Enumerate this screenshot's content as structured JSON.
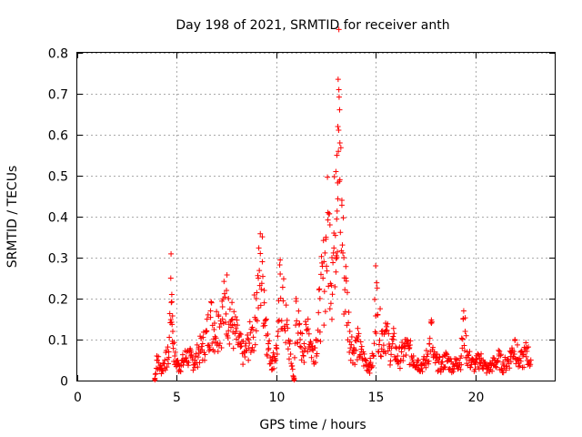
{
  "chart_data": {
    "type": "scatter",
    "title": "Day 198 of 2021, SRMTID for receiver anth",
    "xlabel": "GPS time / hours",
    "ylabel": "SRMTID / TECUs",
    "xlim": [
      0,
      24
    ],
    "ylim": [
      0,
      0.8
    ],
    "xticks": [
      0,
      5,
      10,
      15,
      20
    ],
    "yticks": [
      0,
      0.1,
      0.2,
      0.3,
      0.4,
      0.5,
      0.6,
      0.7,
      0.8
    ],
    "grid": true,
    "marker": "plus",
    "color": "#ff0000",
    "series": [
      {
        "name": "SRMTID",
        "x": [
          3.9,
          4.0,
          4.2,
          4.4,
          4.6,
          4.7,
          4.75,
          4.8,
          4.9,
          5.1,
          5.3,
          5.5,
          5.7,
          5.9,
          6.1,
          6.3,
          6.5,
          6.7,
          6.9,
          7.1,
          7.3,
          7.5,
          7.6,
          7.8,
          8.0,
          8.2,
          8.4,
          8.6,
          8.8,
          9.0,
          9.1,
          9.2,
          9.3,
          9.4,
          9.5,
          9.6,
          9.8,
          10.0,
          10.1,
          10.2,
          10.9,
          11.0,
          11.2,
          11.4,
          11.6,
          11.8,
          12.0,
          12.2,
          12.4,
          12.5,
          12.6,
          12.7,
          12.8,
          12.9,
          13.0,
          13.05,
          13.1,
          13.15,
          13.2,
          13.3,
          13.4,
          13.5,
          13.7,
          13.9,
          14.1,
          14.3,
          14.5,
          14.7,
          14.9,
          15.0,
          15.1,
          15.3,
          15.5,
          15.7,
          15.9,
          16.1,
          16.3,
          16.5,
          16.7,
          16.9,
          17.1,
          17.3,
          17.5,
          17.7,
          17.8,
          17.9,
          18.1,
          18.3,
          18.5,
          18.7,
          18.9,
          19.1,
          19.3,
          19.4,
          19.5,
          19.6,
          19.8,
          20.0,
          20.2,
          20.4,
          20.6,
          20.8,
          21.0,
          21.2,
          21.4,
          21.6,
          21.8,
          22.0,
          22.2,
          22.4,
          22.6,
          22.8
        ],
        "y": [
          0.002,
          0.06,
          0.03,
          0.05,
          0.07,
          0.25,
          0.21,
          0.12,
          0.06,
          0.04,
          0.05,
          0.07,
          0.06,
          0.05,
          0.08,
          0.09,
          0.12,
          0.17,
          0.14,
          0.16,
          0.18,
          0.22,
          0.2,
          0.15,
          0.12,
          0.09,
          0.07,
          0.1,
          0.13,
          0.2,
          0.25,
          0.31,
          0.29,
          0.22,
          0.15,
          0.09,
          0.05,
          0.08,
          0.12,
          0.26,
          0.002,
          0.2,
          0.1,
          0.09,
          0.15,
          0.08,
          0.1,
          0.2,
          0.29,
          0.35,
          0.41,
          0.38,
          0.3,
          0.36,
          0.51,
          0.55,
          0.62,
          0.71,
          0.58,
          0.44,
          0.3,
          0.25,
          0.12,
          0.08,
          0.1,
          0.07,
          0.05,
          0.04,
          0.06,
          0.28,
          0.16,
          0.12,
          0.14,
          0.08,
          0.1,
          0.06,
          0.07,
          0.09,
          0.08,
          0.06,
          0.05,
          0.04,
          0.05,
          0.09,
          0.14,
          0.06,
          0.05,
          0.04,
          0.06,
          0.05,
          0.04,
          0.05,
          0.06,
          0.15,
          0.12,
          0.07,
          0.05,
          0.04,
          0.06,
          0.05,
          0.03,
          0.04,
          0.05,
          0.06,
          0.04,
          0.05,
          0.07,
          0.1,
          0.05,
          0.06,
          0.08,
          0.05
        ]
      }
    ],
    "markers_at_zero": [
      3.9,
      10.9
    ]
  }
}
